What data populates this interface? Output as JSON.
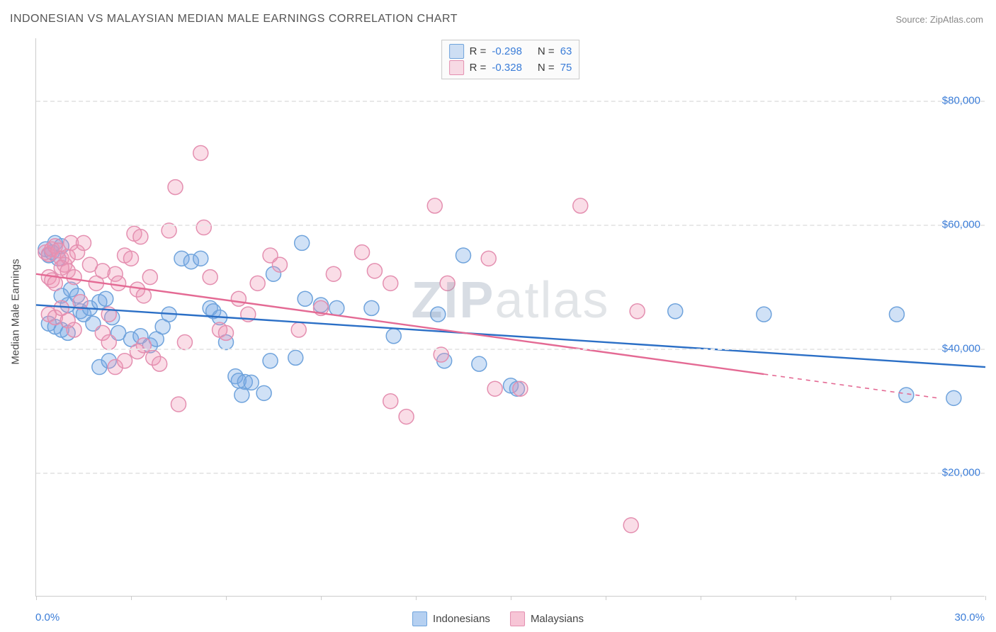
{
  "title": "INDONESIAN VS MALAYSIAN MEDIAN MALE EARNINGS CORRELATION CHART",
  "source_label": "Source: ZipAtlas.com",
  "ylabel": "Median Male Earnings",
  "watermark_a": "ZIP",
  "watermark_b": "atlas",
  "chart": {
    "type": "scatter-with-regression",
    "background_color": "#ffffff",
    "grid_color": "#e8e8e8",
    "axis_color": "#cccccc",
    "xlim": [
      0,
      30
    ],
    "ylim": [
      0,
      90000
    ],
    "x_left_label": "0.0%",
    "x_right_label": "30.0%",
    "xtick_positions": [
      0,
      3,
      6,
      9,
      12,
      15,
      18,
      21,
      24,
      27,
      30
    ],
    "yticks": [
      {
        "v": 20000,
        "label": "$20,000"
      },
      {
        "v": 40000,
        "label": "$40,000"
      },
      {
        "v": 60000,
        "label": "$60,000"
      },
      {
        "v": 80000,
        "label": "$80,000"
      }
    ],
    "marker_radius": 10.5,
    "marker_stroke_width": 1.5,
    "line_width": 2.4,
    "series": [
      {
        "name": "Indonesians",
        "fill": "rgba(120,170,230,0.35)",
        "stroke": "#6fa3dc",
        "line_color": "#2b6fc6",
        "R": "-0.298",
        "N": "63",
        "trend": {
          "x1": 0,
          "y1": 47000,
          "x2": 30,
          "y2": 37000,
          "solid_to_x": 30
        },
        "points": [
          [
            0.3,
            56000
          ],
          [
            0.4,
            55000
          ],
          [
            0.5,
            55500
          ],
          [
            0.6,
            57000
          ],
          [
            0.7,
            54500
          ],
          [
            0.8,
            56500
          ],
          [
            0.4,
            44000
          ],
          [
            0.6,
            43500
          ],
          [
            0.8,
            43000
          ],
          [
            1.0,
            42500
          ],
          [
            0.8,
            48500
          ],
          [
            1.0,
            47000
          ],
          [
            1.1,
            49500
          ],
          [
            1.3,
            48500
          ],
          [
            1.4,
            46000
          ],
          [
            1.5,
            45500
          ],
          [
            1.7,
            46500
          ],
          [
            1.8,
            44000
          ],
          [
            2.0,
            47500
          ],
          [
            2.2,
            48000
          ],
          [
            2.4,
            45000
          ],
          [
            2.6,
            42500
          ],
          [
            2.0,
            37000
          ],
          [
            2.3,
            38000
          ],
          [
            3.0,
            41500
          ],
          [
            3.3,
            42000
          ],
          [
            3.6,
            40500
          ],
          [
            3.8,
            41500
          ],
          [
            4.0,
            43500
          ],
          [
            4.2,
            45500
          ],
          [
            4.6,
            54500
          ],
          [
            4.9,
            54000
          ],
          [
            5.2,
            54500
          ],
          [
            5.5,
            46500
          ],
          [
            5.6,
            46000
          ],
          [
            5.8,
            45000
          ],
          [
            6.0,
            41000
          ],
          [
            6.3,
            35500
          ],
          [
            6.4,
            34800
          ],
          [
            6.6,
            34600
          ],
          [
            6.8,
            34500
          ],
          [
            6.5,
            32500
          ],
          [
            7.2,
            32800
          ],
          [
            7.4,
            38000
          ],
          [
            7.5,
            52000
          ],
          [
            8.2,
            38500
          ],
          [
            8.4,
            57000
          ],
          [
            8.5,
            48000
          ],
          [
            9.0,
            47000
          ],
          [
            9.5,
            46500
          ],
          [
            10.6,
            46500
          ],
          [
            11.3,
            42000
          ],
          [
            12.7,
            45500
          ],
          [
            12.9,
            38000
          ],
          [
            13.5,
            55000
          ],
          [
            14.0,
            37500
          ],
          [
            15.0,
            34000
          ],
          [
            15.2,
            33500
          ],
          [
            20.2,
            46000
          ],
          [
            23.0,
            45500
          ],
          [
            27.2,
            45500
          ],
          [
            27.5,
            32500
          ],
          [
            29.0,
            32000
          ]
        ]
      },
      {
        "name": "Malaysians",
        "fill": "rgba(240,150,180,0.32)",
        "stroke": "#e48fb0",
        "line_color": "#e46a94",
        "R": "-0.328",
        "N": "75",
        "trend": {
          "x1": 0,
          "y1": 52000,
          "x2": 28.5,
          "y2": 32000,
          "solid_to_x": 23
        },
        "points": [
          [
            0.3,
            55500
          ],
          [
            0.4,
            55200
          ],
          [
            0.5,
            56000
          ],
          [
            0.6,
            56500
          ],
          [
            0.7,
            55800
          ],
          [
            0.8,
            54500
          ],
          [
            0.9,
            53500
          ],
          [
            1.0,
            54800
          ],
          [
            0.4,
            51500
          ],
          [
            0.5,
            51000
          ],
          [
            0.6,
            50500
          ],
          [
            0.8,
            53000
          ],
          [
            1.0,
            52500
          ],
          [
            1.2,
            51500
          ],
          [
            0.4,
            45500
          ],
          [
            0.6,
            45000
          ],
          [
            0.8,
            46500
          ],
          [
            1.0,
            44500
          ],
          [
            1.2,
            43000
          ],
          [
            1.4,
            47500
          ],
          [
            1.1,
            57000
          ],
          [
            1.3,
            55500
          ],
          [
            1.5,
            57000
          ],
          [
            1.7,
            53500
          ],
          [
            1.9,
            50500
          ],
          [
            2.1,
            52500
          ],
          [
            2.3,
            45500
          ],
          [
            2.5,
            52000
          ],
          [
            2.1,
            42500
          ],
          [
            2.3,
            41000
          ],
          [
            2.6,
            50500
          ],
          [
            2.8,
            55000
          ],
          [
            3.0,
            54500
          ],
          [
            3.2,
            49500
          ],
          [
            3.4,
            48500
          ],
          [
            3.6,
            51500
          ],
          [
            3.1,
            58500
          ],
          [
            3.3,
            58000
          ],
          [
            2.5,
            37000
          ],
          [
            2.8,
            38000
          ],
          [
            3.2,
            39500
          ],
          [
            3.4,
            40500
          ],
          [
            3.7,
            38500
          ],
          [
            3.9,
            37500
          ],
          [
            4.2,
            59000
          ],
          [
            4.4,
            66000
          ],
          [
            4.7,
            41000
          ],
          [
            4.5,
            31000
          ],
          [
            5.2,
            71500
          ],
          [
            5.3,
            59500
          ],
          [
            5.5,
            51500
          ],
          [
            5.8,
            43000
          ],
          [
            6.0,
            42500
          ],
          [
            6.4,
            48000
          ],
          [
            6.7,
            45500
          ],
          [
            7.0,
            50500
          ],
          [
            7.4,
            55000
          ],
          [
            7.7,
            53500
          ],
          [
            8.3,
            43000
          ],
          [
            9.0,
            46500
          ],
          [
            9.4,
            52000
          ],
          [
            10.3,
            55500
          ],
          [
            10.7,
            52500
          ],
          [
            11.2,
            50500
          ],
          [
            11.2,
            31500
          ],
          [
            11.7,
            29000
          ],
          [
            12.6,
            63000
          ],
          [
            12.8,
            39000
          ],
          [
            13.0,
            50500
          ],
          [
            14.3,
            54500
          ],
          [
            14.5,
            33500
          ],
          [
            15.3,
            33500
          ],
          [
            17.2,
            63000
          ],
          [
            18.8,
            11500
          ],
          [
            19.0,
            46000
          ]
        ]
      }
    ]
  },
  "legend_bottom": [
    {
      "label": "Indonesians",
      "fill": "rgba(120,170,230,0.55)",
      "stroke": "#6fa3dc"
    },
    {
      "label": "Malaysians",
      "fill": "rgba(240,150,180,0.55)",
      "stroke": "#e48fb0"
    }
  ],
  "label_color": "#3b7dd8",
  "text_color": "#484848",
  "title_color": "#555555"
}
